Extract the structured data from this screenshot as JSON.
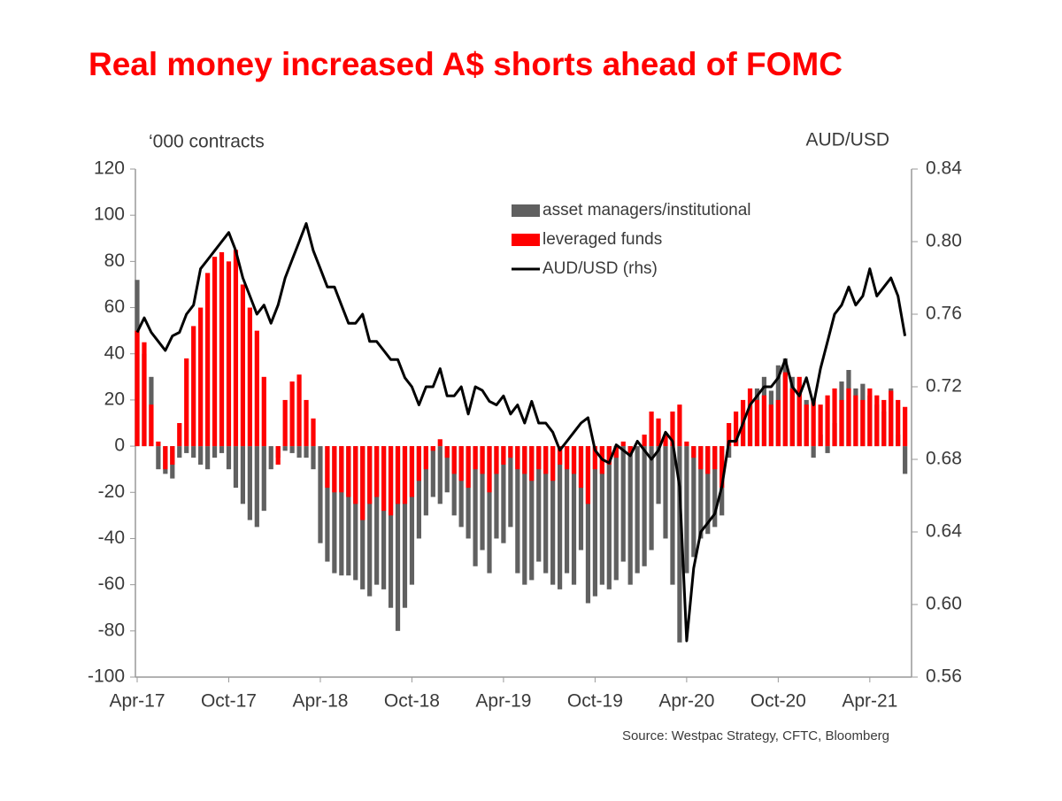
{
  "chart_data": {
    "type": "bar",
    "title": "Real money increased A$ shorts ahead of FOMC",
    "y_label": "‘000 contracts",
    "y2_label": "AUD/USD",
    "source": "Source: Westpac Strategy, CFTC, Bloomberg",
    "categories": [
      "Apr-17",
      null,
      null,
      null,
      null,
      null,
      null,
      null,
      null,
      null,
      null,
      null,
      null,
      "Oct-17",
      null,
      null,
      null,
      null,
      null,
      null,
      null,
      null,
      null,
      null,
      null,
      null,
      "Apr-18",
      null,
      null,
      null,
      null,
      null,
      null,
      null,
      null,
      null,
      null,
      null,
      null,
      "Oct-18",
      null,
      null,
      null,
      null,
      null,
      null,
      null,
      null,
      null,
      null,
      null,
      null,
      "Apr-19",
      null,
      null,
      null,
      null,
      null,
      null,
      null,
      null,
      null,
      null,
      null,
      null,
      "Oct-19",
      null,
      null,
      null,
      null,
      null,
      null,
      null,
      null,
      null,
      null,
      null,
      null,
      "Apr-20",
      null,
      null,
      null,
      null,
      null,
      null,
      null,
      null,
      null,
      null,
      null,
      null,
      "Oct-20",
      null,
      null,
      null,
      null,
      null,
      null,
      null,
      null,
      null,
      null,
      null,
      null,
      "Apr-21",
      null,
      null,
      null,
      null,
      null
    ],
    "series": [
      {
        "name": "asset managers/institutional",
        "color": "#606060",
        "type": "bar",
        "values": [
          72,
          40,
          30,
          -10,
          -12,
          -14,
          -5,
          -3,
          -5,
          -8,
          -10,
          -5,
          -3,
          -10,
          -18,
          -25,
          -32,
          -35,
          -28,
          -10,
          -5,
          -2,
          -3,
          -5,
          -5,
          -10,
          -42,
          -50,
          -55,
          -56,
          -56,
          -58,
          -62,
          -65,
          -60,
          -62,
          -70,
          -80,
          -70,
          -60,
          -40,
          -30,
          -22,
          -25,
          -20,
          -30,
          -35,
          -40,
          -52,
          -45,
          -55,
          -40,
          -42,
          -35,
          -55,
          -60,
          -58,
          -50,
          -55,
          -60,
          -62,
          -55,
          -60,
          -45,
          -68,
          -65,
          -60,
          -62,
          -58,
          -50,
          -60,
          -55,
          -52,
          -45,
          -25,
          -40,
          -60,
          -85,
          -55,
          -48,
          -40,
          -38,
          -35,
          -30,
          -5,
          3,
          10,
          20,
          25,
          30,
          24,
          35,
          38,
          30,
          25,
          20,
          -5,
          5,
          -3,
          10,
          28,
          33,
          25,
          27,
          22,
          18,
          15,
          25,
          5,
          -12
        ]
      },
      {
        "name": "leveraged funds",
        "color": "#ff0000",
        "type": "bar",
        "values": [
          50,
          45,
          18,
          2,
          -10,
          -8,
          10,
          38,
          52,
          60,
          75,
          82,
          84,
          80,
          85,
          70,
          60,
          50,
          30,
          0,
          -8,
          20,
          28,
          31,
          20,
          12,
          0,
          -18,
          -20,
          -20,
          -22,
          -25,
          -32,
          -25,
          -22,
          -28,
          -30,
          -25,
          -25,
          -22,
          -15,
          -10,
          -2,
          3,
          -5,
          -12,
          -15,
          -18,
          -10,
          -12,
          -20,
          -12,
          -8,
          -5,
          -10,
          -12,
          -15,
          -10,
          -12,
          -15,
          -8,
          -10,
          -12,
          -18,
          -25,
          -10,
          -12,
          -8,
          -5,
          2,
          -3,
          0,
          5,
          15,
          12,
          5,
          15,
          18,
          2,
          -5,
          -10,
          -12,
          -10,
          -18,
          10,
          15,
          20,
          25,
          20,
          22,
          18,
          20,
          32,
          25,
          30,
          18,
          20,
          18,
          22,
          25,
          20,
          25,
          22,
          20,
          25,
          22,
          20,
          24,
          20,
          17
        ]
      },
      {
        "name": "AUD/USD (rhs)",
        "color": "#000000",
        "type": "line",
        "axis": "y2",
        "values": [
          0.75,
          0.758,
          0.75,
          0.745,
          0.74,
          0.748,
          0.75,
          0.76,
          0.765,
          0.785,
          0.79,
          0.795,
          0.8,
          0.805,
          0.795,
          0.78,
          0.77,
          0.76,
          0.765,
          0.755,
          0.765,
          0.78,
          0.79,
          0.8,
          0.81,
          0.795,
          0.785,
          0.775,
          0.775,
          0.765,
          0.755,
          0.755,
          0.76,
          0.745,
          0.745,
          0.74,
          0.735,
          0.735,
          0.725,
          0.72,
          0.71,
          0.72,
          0.72,
          0.73,
          0.715,
          0.715,
          0.72,
          0.705,
          0.72,
          0.718,
          0.712,
          0.71,
          0.715,
          0.705,
          0.71,
          0.7,
          0.712,
          0.7,
          0.7,
          0.695,
          0.685,
          0.69,
          0.695,
          0.7,
          0.703,
          0.685,
          0.68,
          0.678,
          0.688,
          0.685,
          0.682,
          0.69,
          0.685,
          0.68,
          0.685,
          0.695,
          0.69,
          0.665,
          0.58,
          0.62,
          0.64,
          0.645,
          0.65,
          0.665,
          0.69,
          0.69,
          0.7,
          0.71,
          0.715,
          0.72,
          0.72,
          0.725,
          0.735,
          0.72,
          0.715,
          0.725,
          0.71,
          0.73,
          0.745,
          0.76,
          0.765,
          0.775,
          0.765,
          0.77,
          0.785,
          0.77,
          0.775,
          0.78,
          0.77,
          0.748
        ]
      }
    ],
    "ylim": [
      -100,
      120
    ],
    "yticks": [
      -100,
      -80,
      -60,
      -40,
      -20,
      0,
      20,
      40,
      60,
      80,
      100,
      120
    ],
    "y2lim": [
      0.56,
      0.84
    ],
    "y2ticks": [
      {
        "value": 0.56,
        "label": "0.56"
      },
      {
        "value": 0.6,
        "label": "0.60"
      },
      {
        "value": 0.64,
        "label": "0.64"
      },
      {
        "value": 0.68,
        "label": "0.68"
      },
      {
        "value": 0.72,
        "label": "0.72"
      },
      {
        "value": 0.76,
        "label": "0.76"
      },
      {
        "value": 0.8,
        "label": "0.80"
      },
      {
        "value": 0.84,
        "label": "0.84"
      }
    ],
    "grid": false,
    "legend": "top-center"
  }
}
